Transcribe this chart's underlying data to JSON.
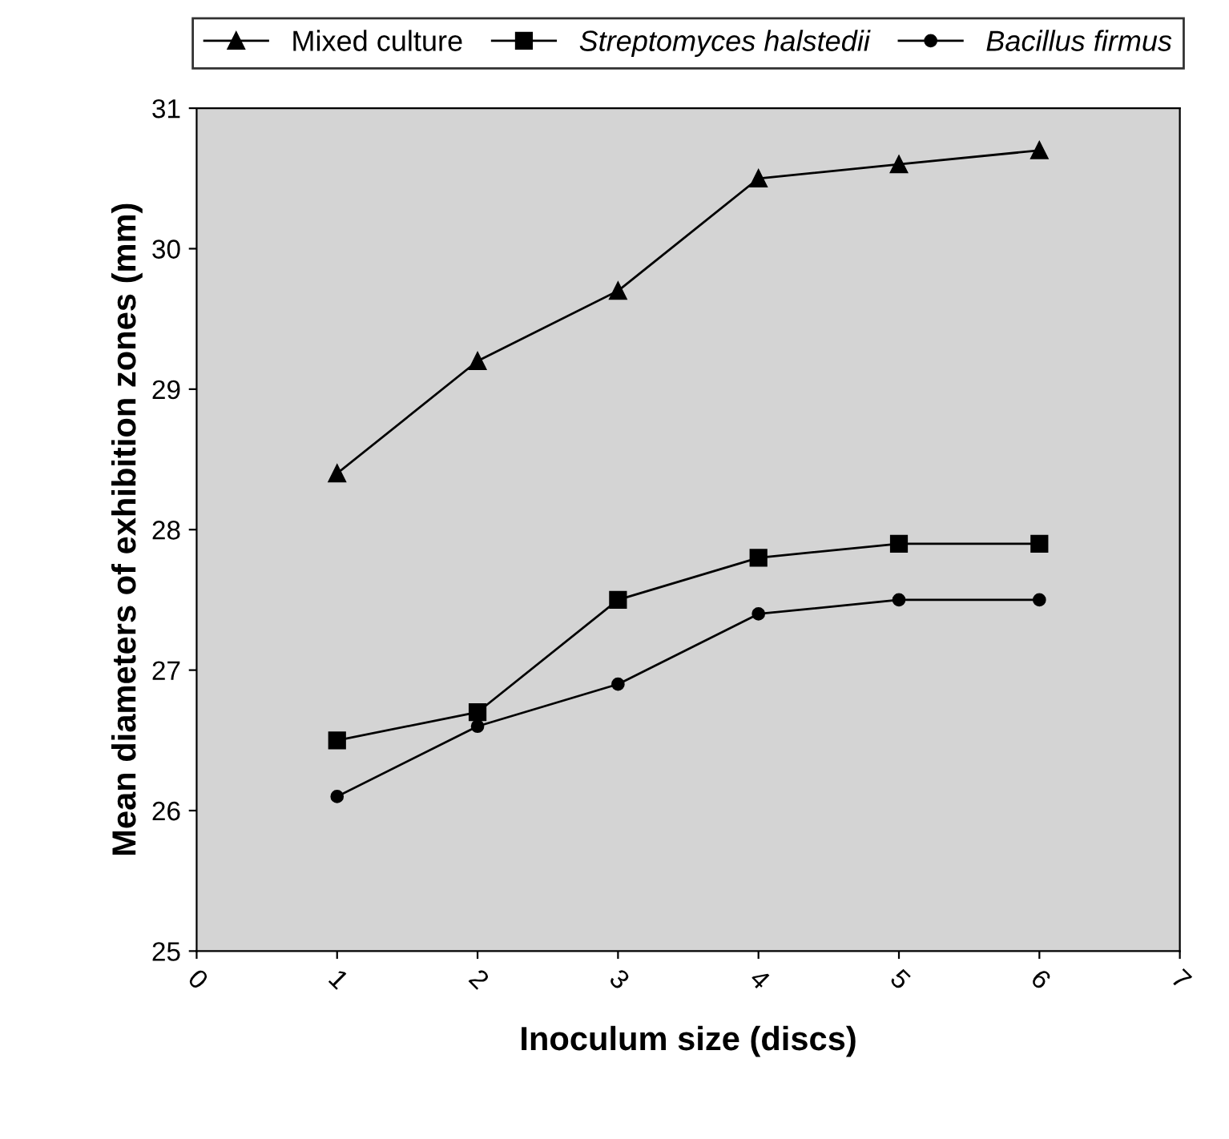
{
  "chart_data": {
    "type": "line",
    "xlabel": "Inoculum size (discs)",
    "ylabel": "Mean diameters of exhibition zones (mm)",
    "x": [
      1,
      2,
      3,
      4,
      5,
      6
    ],
    "series": [
      {
        "name": "Mixed culture",
        "color": "#000000",
        "marker": "triangle",
        "values": [
          28.4,
          29.2,
          29.7,
          30.5,
          30.6,
          30.7
        ]
      },
      {
        "name": "Streptomyces halstedii",
        "color": "#000000",
        "marker": "square",
        "values": [
          26.5,
          26.7,
          27.5,
          27.8,
          27.9,
          27.9
        ]
      },
      {
        "name": "Bacillus firmus",
        "color": "#000000",
        "marker": "circle",
        "values": [
          26.1,
          26.6,
          26.9,
          27.4,
          27.5,
          27.5
        ]
      }
    ],
    "xlim": [
      0,
      7
    ],
    "xticks": [
      0,
      1,
      2,
      3,
      4,
      5,
      6,
      7
    ],
    "ylim": [
      25,
      31
    ],
    "yticks": [
      25,
      26,
      27,
      28,
      29,
      30,
      31
    ],
    "grid": false,
    "legend": "top",
    "line_style": "solid"
  }
}
